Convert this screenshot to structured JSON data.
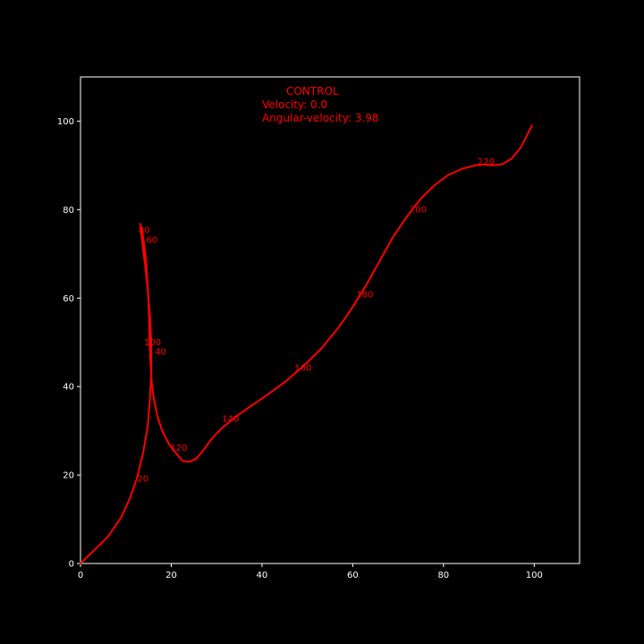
{
  "chart_data": {
    "type": "line",
    "background": "#000000",
    "axis_color": "#ffffff",
    "line_color": "#ff0000",
    "grid": false,
    "xlim": [
      0,
      110
    ],
    "ylim": [
      0,
      110
    ],
    "x_ticks": [
      0,
      20,
      40,
      60,
      80,
      100
    ],
    "y_ticks": [
      0,
      20,
      40,
      60,
      80,
      100
    ],
    "annotation": {
      "title": "CONTROL",
      "velocity": "Velocity: 0.0",
      "angular_velocity": "Angular-velocity: 3.98"
    },
    "series": [
      {
        "x": [
          0,
          3,
          6,
          9,
          11,
          12.5,
          13.8,
          14.8,
          15.3,
          15.6,
          15.6,
          15.3,
          14.8,
          14.3,
          13.8,
          13.4,
          13.2,
          13.2,
          13.3,
          13.6,
          13.9,
          14.3,
          14.6,
          14.9,
          15.1,
          15.2,
          15.4,
          15.7,
          16.2,
          16.9,
          18,
          19.5,
          21,
          22.5,
          24,
          25.5,
          27,
          29,
          31,
          34,
          37,
          41,
          45,
          49,
          53,
          57,
          60,
          63,
          66,
          69,
          72,
          75,
          78,
          81,
          84,
          87,
          89,
          91,
          93,
          95,
          97,
          99.5
        ],
        "y": [
          0,
          3,
          6,
          10.5,
          15,
          19.5,
          25,
          31,
          37,
          43,
          50,
          56,
          62,
          67,
          71,
          74.5,
          76.5,
          76.8,
          76.3,
          75,
          73,
          70,
          66,
          61,
          56,
          51,
          46,
          41,
          37,
          33.5,
          30,
          27,
          25,
          23.2,
          23,
          23.7,
          25.5,
          28.3,
          30.5,
          33,
          35.2,
          38,
          41,
          44.5,
          48.5,
          53.5,
          58,
          63,
          68.5,
          74,
          78.5,
          82.5,
          85.5,
          87.8,
          89.2,
          90,
          90.2,
          90,
          90.3,
          91.5,
          94,
          99
        ]
      }
    ],
    "point_labels": [
      {
        "text": "20",
        "x": 12.5,
        "y": 18.5
      },
      {
        "text": "40",
        "x": 16.4,
        "y": 47.2
      },
      {
        "text": "60",
        "x": 14.5,
        "y": 72.5
      },
      {
        "text": "80",
        "x": 12.8,
        "y": 74.7
      },
      {
        "text": "100",
        "x": 14,
        "y": 49.3
      },
      {
        "text": "120",
        "x": 19.8,
        "y": 25.5
      },
      {
        "text": "140",
        "x": 31.2,
        "y": 32
      },
      {
        "text": "160",
        "x": 47.2,
        "y": 43.6
      },
      {
        "text": "180",
        "x": 60.8,
        "y": 60.2
      },
      {
        "text": "200",
        "x": 72.5,
        "y": 79.4
      },
      {
        "text": "220",
        "x": 87.5,
        "y": 90.2
      }
    ]
  }
}
